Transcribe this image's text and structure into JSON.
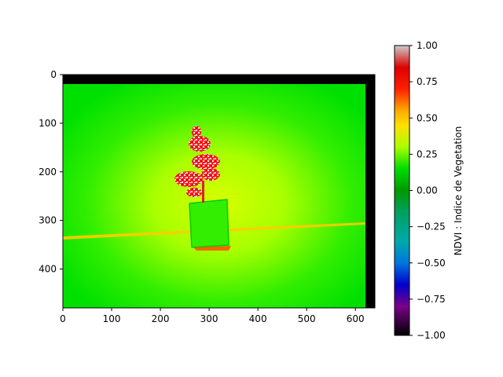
{
  "chart_data": {
    "type": "heatmap",
    "description_of_content": "",
    "x_axis": {
      "range": [
        0,
        640
      ],
      "ticks": [
        0,
        100,
        200,
        300,
        400,
        500,
        600
      ],
      "tick_labels": [
        "0",
        "100",
        "200",
        "300",
        "400",
        "500",
        "600"
      ],
      "label": ""
    },
    "y_axis": {
      "range": [
        0,
        480
      ],
      "inverted": true,
      "ticks": [
        0,
        100,
        200,
        300,
        400
      ],
      "tick_labels": [
        "0",
        "100",
        "200",
        "300",
        "400"
      ],
      "label": ""
    },
    "colorbar": {
      "label": "NDVI : Indice de Vegetation",
      "range": [
        -1.0,
        1.0
      ],
      "ticks": [
        1.0,
        0.75,
        0.5,
        0.25,
        0.0,
        -0.25,
        -0.5,
        -0.75,
        -1.0
      ],
      "tick_labels": [
        "1.00",
        "0.75",
        "0.50",
        "0.25",
        "0.00",
        "−0.25",
        "−0.50",
        "−0.75",
        "−1.00"
      ],
      "colormap": "nipy_spectral",
      "colormap_stops": [
        {
          "v": -1.0,
          "color": "#000000"
        },
        {
          "v": -0.8,
          "color": "#7a0088"
        },
        {
          "v": -0.65,
          "color": "#0000cc"
        },
        {
          "v": -0.5,
          "color": "#0077dd"
        },
        {
          "v": -0.35,
          "color": "#00aaaa"
        },
        {
          "v": -0.15,
          "color": "#00a060"
        },
        {
          "v": 0.0,
          "color": "#009900"
        },
        {
          "v": 0.15,
          "color": "#00dd00"
        },
        {
          "v": 0.3,
          "color": "#aaff00"
        },
        {
          "v": 0.45,
          "color": "#ffe000"
        },
        {
          "v": 0.55,
          "color": "#ffaa00"
        },
        {
          "v": 0.7,
          "color": "#ff2000"
        },
        {
          "v": 0.85,
          "color": "#dd0000"
        },
        {
          "v": 1.0,
          "color": "#cccccc"
        }
      ]
    },
    "regions": [
      {
        "name": "background",
        "ndvi": 0.18
      },
      {
        "name": "image-top-border",
        "ndvi": -1.0
      },
      {
        "name": "image-right-border",
        "ndvi": -1.0
      },
      {
        "name": "plant-pot",
        "ndvi": 0.2
      },
      {
        "name": "plant-leaves",
        "ndvi": 0.85
      }
    ]
  }
}
